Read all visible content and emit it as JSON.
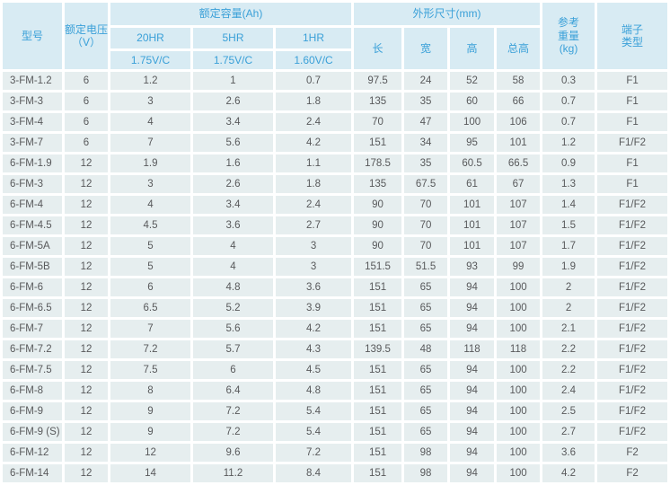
{
  "colors": {
    "header_bg": "#d8ebf3",
    "header_text": "#3aa0d8",
    "cell_bg": "#e6eeef",
    "cell_text": "#58595b",
    "gap": "#ffffff"
  },
  "table": {
    "header": {
      "model": "型号",
      "voltage": "额定电压\n（V）",
      "capacity_group": "额定容量(Ah)",
      "capacity_cols": [
        {
          "rate": "20HR",
          "cutoff": "1.75V/C"
        },
        {
          "rate": "5HR",
          "cutoff": "1.75V/C"
        },
        {
          "rate": "1HR",
          "cutoff": "1.60V/C"
        }
      ],
      "dimensions_group": "外形尺寸(mm)",
      "dimension_cols": [
        "长",
        "宽",
        "高",
        "总高"
      ],
      "weight": "参考\n重量\n(kg)",
      "terminal": "端子\n类型"
    },
    "column_keys": [
      "model",
      "voltage",
      "capacity_20hr",
      "capacity_5hr",
      "capacity_1hr",
      "length",
      "width",
      "height",
      "total_height",
      "weight",
      "terminal"
    ],
    "rows": [
      [
        "3-FM-1.2",
        "6",
        "1.2",
        "1",
        "0.7",
        "97.5",
        "24",
        "52",
        "58",
        "0.3",
        "F1"
      ],
      [
        "3-FM-3",
        "6",
        "3",
        "2.6",
        "1.8",
        "135",
        "35",
        "60",
        "66",
        "0.7",
        "F1"
      ],
      [
        "3-FM-4",
        "6",
        "4",
        "3.4",
        "2.4",
        "70",
        "47",
        "100",
        "106",
        "0.7",
        "F1"
      ],
      [
        "3-FM-7",
        "6",
        "7",
        "5.6",
        "4.2",
        "151",
        "34",
        "95",
        "101",
        "1.2",
        "F1/F2"
      ],
      [
        "6-FM-1.9",
        "12",
        "1.9",
        "1.6",
        "1.1",
        "178.5",
        "35",
        "60.5",
        "66.5",
        "0.9",
        "F1"
      ],
      [
        "6-FM-3",
        "12",
        "3",
        "2.6",
        "1.8",
        "135",
        "67.5",
        "61",
        "67",
        "1.3",
        "F1"
      ],
      [
        "6-FM-4",
        "12",
        "4",
        "3.4",
        "2.4",
        "90",
        "70",
        "101",
        "107",
        "1.4",
        "F1/F2"
      ],
      [
        "6-FM-4.5",
        "12",
        "4.5",
        "3.6",
        "2.7",
        "90",
        "70",
        "101",
        "107",
        "1.5",
        "F1/F2"
      ],
      [
        "6-FM-5A",
        "12",
        "5",
        "4",
        "3",
        "90",
        "70",
        "101",
        "107",
        "1.7",
        "F1/F2"
      ],
      [
        "6-FM-5B",
        "12",
        "5",
        "4",
        "3",
        "151.5",
        "51.5",
        "93",
        "99",
        "1.9",
        "F1/F2"
      ],
      [
        "6-FM-6",
        "12",
        "6",
        "4.8",
        "3.6",
        "151",
        "65",
        "94",
        "100",
        "2",
        "F1/F2"
      ],
      [
        "6-FM-6.5",
        "12",
        "6.5",
        "5.2",
        "3.9",
        "151",
        "65",
        "94",
        "100",
        "2",
        "F1/F2"
      ],
      [
        "6-FM-7",
        "12",
        "7",
        "5.6",
        "4.2",
        "151",
        "65",
        "94",
        "100",
        "2.1",
        "F1/F2"
      ],
      [
        "6-FM-7.2",
        "12",
        "7.2",
        "5.7",
        "4.3",
        "139.5",
        "48",
        "118",
        "118",
        "2.2",
        "F1/F2"
      ],
      [
        "6-FM-7.5",
        "12",
        "7.5",
        "6",
        "4.5",
        "151",
        "65",
        "94",
        "100",
        "2.2",
        "F1/F2"
      ],
      [
        "6-FM-8",
        "12",
        "8",
        "6.4",
        "4.8",
        "151",
        "65",
        "94",
        "100",
        "2.4",
        "F1/F2"
      ],
      [
        "6-FM-9",
        "12",
        "9",
        "7.2",
        "5.4",
        "151",
        "65",
        "94",
        "100",
        "2.5",
        "F1/F2"
      ],
      [
        "6-FM-9 (S)",
        "12",
        "9",
        "7.2",
        "5.4",
        "151",
        "65",
        "94",
        "100",
        "2.7",
        "F1/F2"
      ],
      [
        "6-FM-12",
        "12",
        "12",
        "9.6",
        "7.2",
        "151",
        "98",
        "94",
        "100",
        "3.6",
        "F2"
      ],
      [
        "6-FM-14",
        "12",
        "14",
        "11.2",
        "8.4",
        "151",
        "98",
        "94",
        "100",
        "4.2",
        "F2"
      ]
    ]
  }
}
